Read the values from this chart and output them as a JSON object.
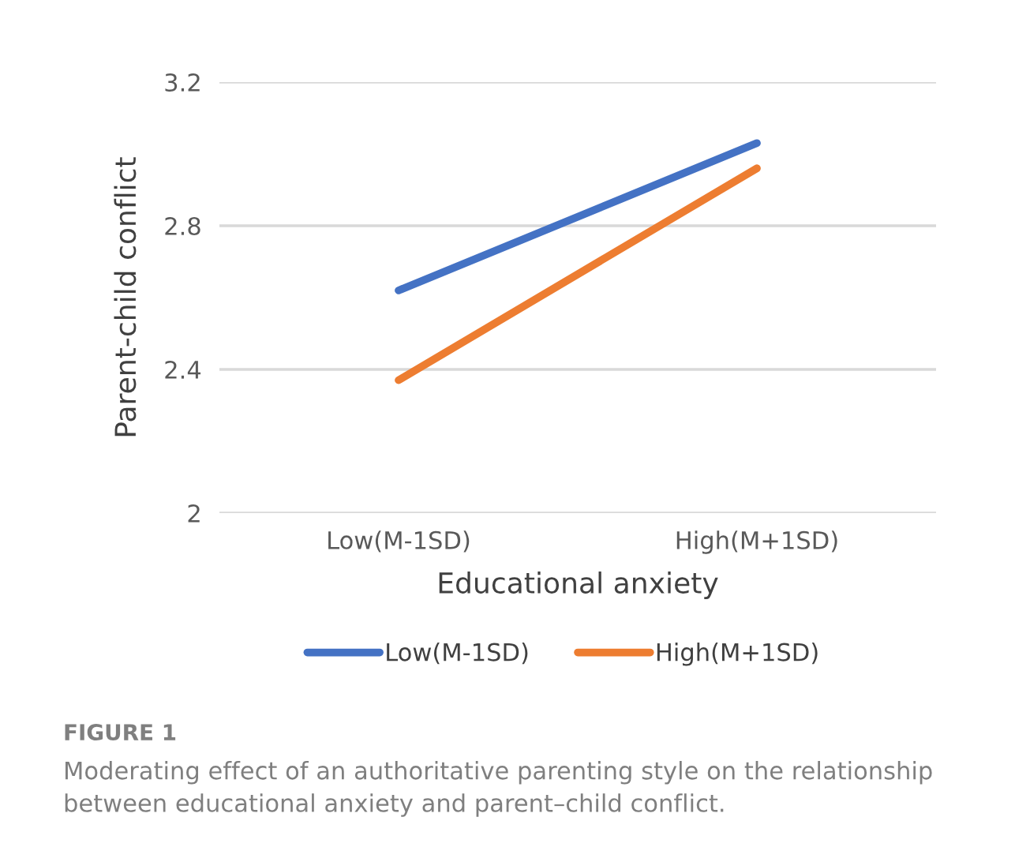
{
  "chart_data": {
    "type": "line",
    "xlabel": "Educational anxiety",
    "ylabel": "Parent-child conflict",
    "categories": [
      "Low(M-1SD)",
      "High(M+1SD)"
    ],
    "series": [
      {
        "name": "Low(M-1SD)",
        "color": "#4472c4",
        "values": [
          2.62,
          3.03
        ]
      },
      {
        "name": "High(M+1SD)",
        "color": "#ed7d31",
        "values": [
          2.37,
          2.96
        ]
      }
    ],
    "ylim": [
      2,
      3.2
    ],
    "yticks": [
      {
        "value": 2,
        "label": "2"
      },
      2.4,
      2.8,
      3.2
    ],
    "grid": "y",
    "legend": "bottom",
    "marker": "none",
    "line_style": "solid",
    "annotations": [
      "FIGURE 1",
      "Moderating effect of an authoritative parenting style on the relationship between educational anxiety and parent–child conflict."
    ]
  }
}
